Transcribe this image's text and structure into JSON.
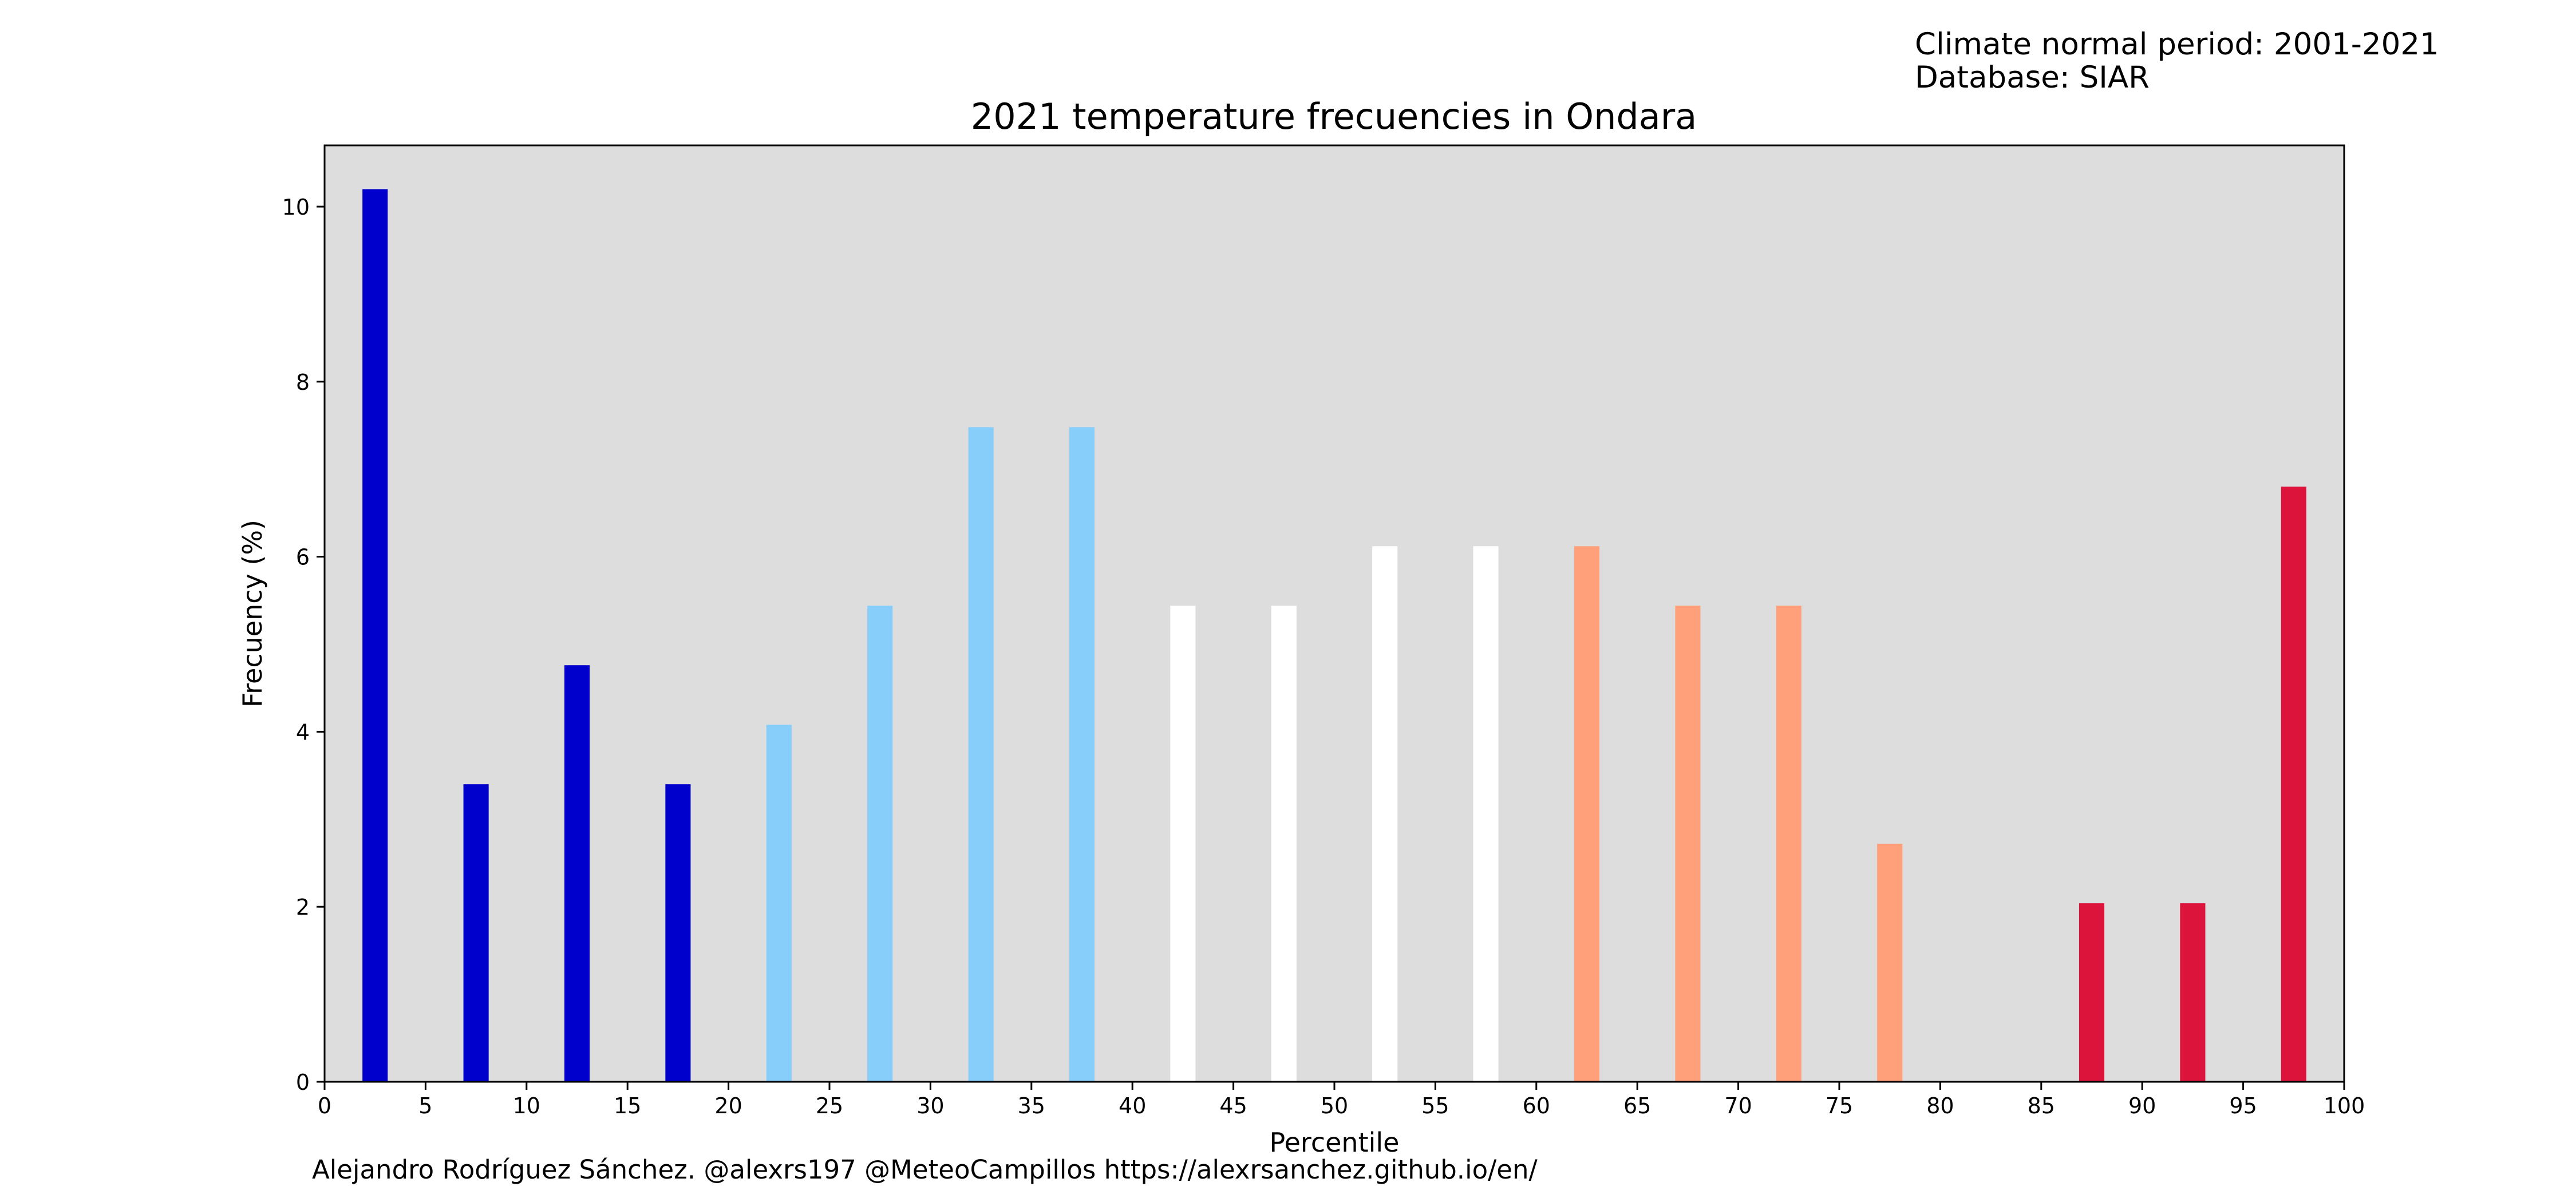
{
  "info": {
    "period": "Climate normal period: 2001-2021",
    "database": "Database: SIAR"
  },
  "credits": "Alejandro Rodríguez Sánchez. @alexrs197 @MeteoCampillos   https://alexrsanchez.github.io/en/",
  "chart_data": {
    "type": "bar",
    "title": "2021 temperature frecuencies in Ondara",
    "xlabel": "Percentile",
    "ylabel": "Frecuency (%)",
    "xlim": [
      0,
      100
    ],
    "ylim": [
      0,
      10.7
    ],
    "xticks": [
      0,
      5,
      10,
      15,
      20,
      25,
      30,
      35,
      40,
      45,
      50,
      55,
      60,
      65,
      70,
      75,
      80,
      85,
      90,
      95,
      100
    ],
    "yticks": [
      0,
      2,
      4,
      6,
      8,
      10
    ],
    "background": "#dddddd",
    "grid": false,
    "bar_width": 1.25,
    "bars": [
      {
        "x": 2.5,
        "value": 10.2,
        "color": "#0000cd"
      },
      {
        "x": 7.5,
        "value": 3.4,
        "color": "#0000cd"
      },
      {
        "x": 12.5,
        "value": 4.76,
        "color": "#0000cd"
      },
      {
        "x": 17.5,
        "value": 3.4,
        "color": "#0000cd"
      },
      {
        "x": 22.5,
        "value": 4.08,
        "color": "#87cefa"
      },
      {
        "x": 27.5,
        "value": 5.44,
        "color": "#87cefa"
      },
      {
        "x": 32.5,
        "value": 7.48,
        "color": "#87cefa"
      },
      {
        "x": 37.5,
        "value": 7.48,
        "color": "#87cefa"
      },
      {
        "x": 42.5,
        "value": 5.44,
        "color": "#ffffff"
      },
      {
        "x": 47.5,
        "value": 5.44,
        "color": "#ffffff"
      },
      {
        "x": 52.5,
        "value": 6.12,
        "color": "#ffffff"
      },
      {
        "x": 57.5,
        "value": 6.12,
        "color": "#ffffff"
      },
      {
        "x": 62.5,
        "value": 6.12,
        "color": "#ffa07a"
      },
      {
        "x": 67.5,
        "value": 5.44,
        "color": "#ffa07a"
      },
      {
        "x": 72.5,
        "value": 5.44,
        "color": "#ffa07a"
      },
      {
        "x": 77.5,
        "value": 2.72,
        "color": "#ffa07a"
      },
      {
        "x": 82.5,
        "value": 0,
        "color": "#dc143c"
      },
      {
        "x": 87.5,
        "value": 2.04,
        "color": "#dc143c"
      },
      {
        "x": 92.5,
        "value": 2.04,
        "color": "#dc143c"
      },
      {
        "x": 97.5,
        "value": 6.8,
        "color": "#dc143c"
      }
    ]
  }
}
